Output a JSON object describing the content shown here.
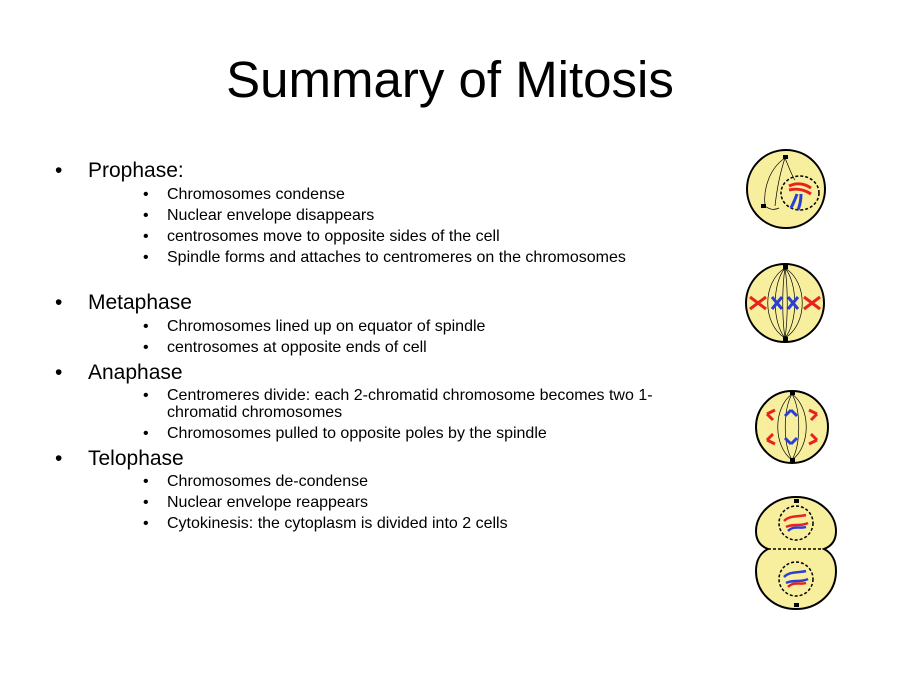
{
  "title": "Summary of Mitosis",
  "bullet": "•",
  "phases": [
    {
      "name": "Prophase:",
      "points": [
        "Chromosomes condense",
        "Nuclear envelope disappears",
        "centrosomes move to opposite sides of the cell",
        "Spindle forms and attaches to centromeres on the chromosomes"
      ]
    },
    {
      "name": "Metaphase",
      "points": [
        "Chromosomes lined up on equator of spindle",
        "centrosomes at opposite ends of cell"
      ]
    },
    {
      "name": "Anaphase",
      "points": [
        "Centromeres divide: each 2-chromatid chromosome becomes two 1-chromatid chromosomes",
        "Chromosomes pulled to opposite poles by the spindle"
      ]
    },
    {
      "name": "Telophase",
      "points": [
        "Chromosomes de-condense",
        "Nuclear envelope reappears",
        "Cytokinesis: the cytoplasm is divided into 2 cells"
      ]
    }
  ],
  "colors": {
    "cell_fill": "#f7ef9e",
    "outline": "#000000",
    "chromosome_red": "#e8231f",
    "chromosome_blue": "#2b3fd6"
  },
  "illustrations": [
    "prophase-cell",
    "metaphase-cell",
    "anaphase-cell",
    "telophase-cells"
  ]
}
